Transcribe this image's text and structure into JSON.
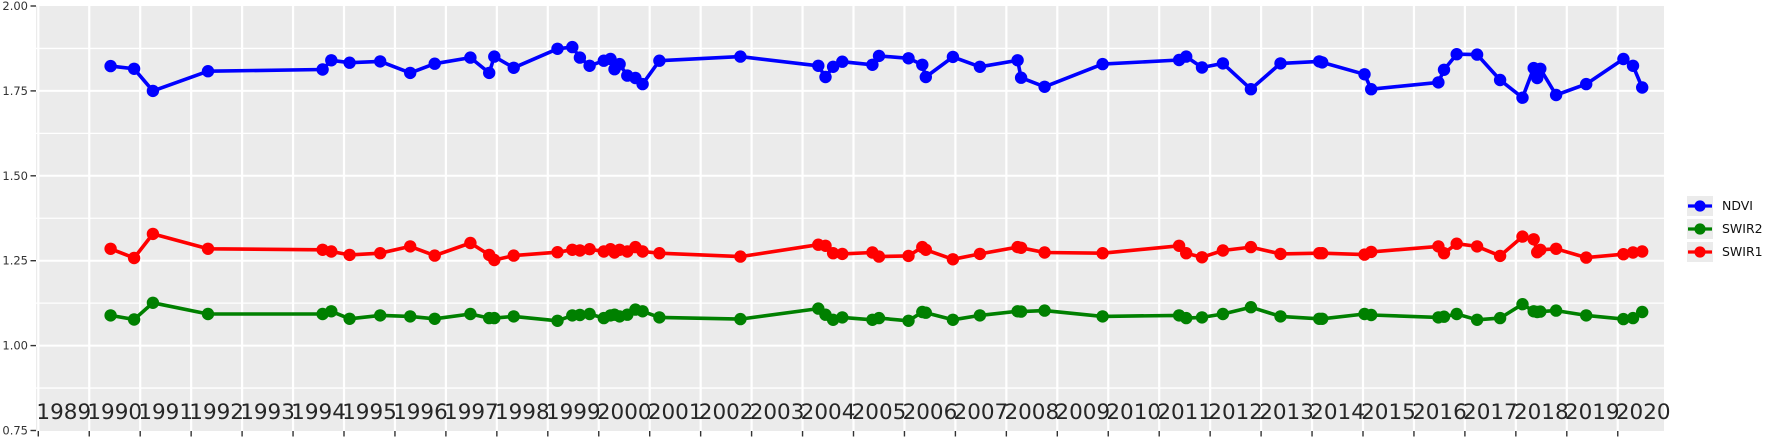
{
  "chart_data": {
    "type": "line",
    "title": "",
    "xlabel": "",
    "ylabel": "",
    "xlim": [
      1988.92,
      2020.92
    ],
    "ylim": [
      0.75,
      2.0
    ],
    "grid": true,
    "panel_bg": "#ebebeb",
    "grid_color": "#ffffff",
    "legend_position": "right",
    "x_ticks": [
      "1989",
      "1990",
      "1991",
      "1992",
      "1993",
      "1994",
      "1995",
      "1996",
      "1997",
      "1998",
      "1999",
      "2000",
      "2001",
      "2002",
      "2003",
      "2004",
      "2005",
      "2006",
      "2007",
      "2008",
      "2009",
      "2010",
      "2011",
      "2012",
      "2013",
      "2014",
      "2015",
      "2016",
      "2017",
      "2018",
      "2019",
      "2020"
    ],
    "y_ticks": [
      "2.00",
      "1.75",
      "1.50",
      "1.25",
      "1.00",
      "0.75"
    ],
    "x": [
      1990.42,
      1990.88,
      1991.25,
      1992.33,
      1994.58,
      1994.75,
      1995.11,
      1995.71,
      1996.3,
      1996.78,
      1997.48,
      1997.85,
      1997.95,
      1998.33,
      1999.19,
      1999.48,
      1999.63,
      1999.82,
      2000.1,
      2000.23,
      2000.31,
      2000.41,
      2000.56,
      2000.72,
      2000.86,
      2001.19,
      2002.78,
      2004.31,
      2004.45,
      2004.6,
      2004.78,
      2005.37,
      2005.5,
      2006.08,
      2006.35,
      2006.42,
      2006.95,
      2007.48,
      2008.22,
      2008.29,
      2008.75,
      2009.89,
      2011.39,
      2011.53,
      2011.84,
      2012.25,
      2012.8,
      2013.38,
      2014.14,
      2014.2,
      2015.03,
      2015.16,
      2016.48,
      2016.59,
      2016.84,
      2017.24,
      2017.69,
      2018.13,
      2018.35,
      2018.42,
      2018.48,
      2018.79,
      2019.38,
      2020.11,
      2020.3,
      2020.48
    ],
    "series": [
      {
        "name": "NDVI",
        "color": "#0000ff",
        "values": [
          1.823,
          1.815,
          1.75,
          1.808,
          1.813,
          1.84,
          1.833,
          1.837,
          1.803,
          1.83,
          1.848,
          1.803,
          1.851,
          1.818,
          1.874,
          1.879,
          1.848,
          1.824,
          1.839,
          1.844,
          1.814,
          1.829,
          1.795,
          1.788,
          1.77,
          1.839,
          1.851,
          1.824,
          1.791,
          1.821,
          1.836,
          1.827,
          1.853,
          1.846,
          1.827,
          1.791,
          1.85,
          1.821,
          1.84,
          1.789,
          1.762,
          1.829,
          1.841,
          1.851,
          1.819,
          1.831,
          1.755,
          1.831,
          1.837,
          1.834,
          1.799,
          1.755,
          1.775,
          1.812,
          1.858,
          1.857,
          1.782,
          1.73,
          1.817,
          1.788,
          1.815,
          1.738,
          1.77,
          1.844,
          1.824,
          1.76
        ]
      },
      {
        "name": "SWIR2",
        "color": "#008000",
        "values": [
          1.089,
          1.077,
          1.126,
          1.093,
          1.093,
          1.101,
          1.079,
          1.089,
          1.086,
          1.079,
          1.093,
          1.081,
          1.081,
          1.086,
          1.073,
          1.089,
          1.09,
          1.093,
          1.081,
          1.089,
          1.091,
          1.086,
          1.091,
          1.106,
          1.101,
          1.083,
          1.078,
          1.109,
          1.091,
          1.076,
          1.083,
          1.076,
          1.081,
          1.073,
          1.099,
          1.097,
          1.076,
          1.089,
          1.101,
          1.1,
          1.103,
          1.086,
          1.089,
          1.081,
          1.083,
          1.093,
          1.113,
          1.086,
          1.079,
          1.079,
          1.093,
          1.09,
          1.083,
          1.085,
          1.093,
          1.076,
          1.081,
          1.122,
          1.101,
          1.099,
          1.1,
          1.103,
          1.089,
          1.078,
          1.081,
          1.099
        ]
      },
      {
        "name": "SWIR1",
        "color": "#ff0000",
        "values": [
          1.285,
          1.258,
          1.329,
          1.285,
          1.282,
          1.277,
          1.267,
          1.272,
          1.292,
          1.265,
          1.302,
          1.267,
          1.252,
          1.265,
          1.275,
          1.282,
          1.28,
          1.284,
          1.277,
          1.284,
          1.274,
          1.282,
          1.277,
          1.29,
          1.277,
          1.272,
          1.262,
          1.297,
          1.294,
          1.272,
          1.27,
          1.274,
          1.262,
          1.264,
          1.29,
          1.282,
          1.254,
          1.27,
          1.29,
          1.288,
          1.274,
          1.272,
          1.294,
          1.272,
          1.26,
          1.28,
          1.29,
          1.27,
          1.272,
          1.272,
          1.268,
          1.276,
          1.292,
          1.272,
          1.3,
          1.292,
          1.264,
          1.321,
          1.313,
          1.275,
          1.282,
          1.285,
          1.259,
          1.269,
          1.274,
          1.277
        ]
      }
    ]
  }
}
